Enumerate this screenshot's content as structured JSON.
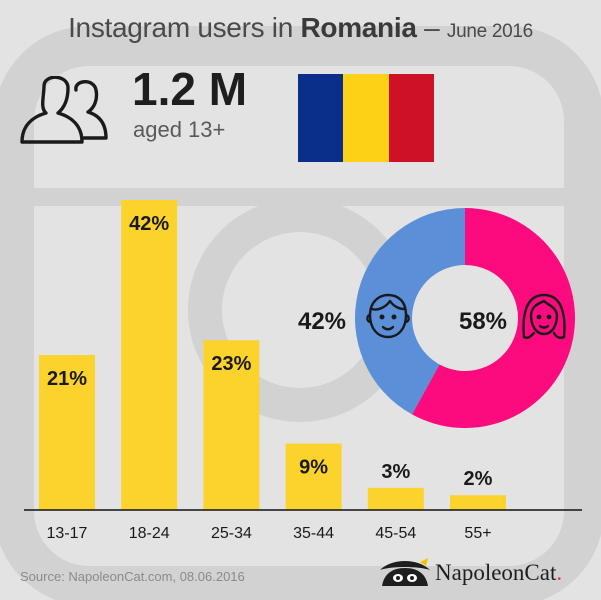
{
  "header": {
    "title_prefix": "Instagram users in",
    "country": "Romania",
    "separator": "–",
    "date": "June 2016"
  },
  "stat": {
    "value": "1.2 M",
    "caption": "aged 13+"
  },
  "flag": {
    "colors": [
      "#0a2f8a",
      "#fcd116",
      "#ce1126"
    ]
  },
  "chart_data": [
    {
      "type": "bar",
      "categories": [
        "13-17",
        "18-24",
        "25-34",
        "35-44",
        "45-54",
        "55+"
      ],
      "values": [
        21,
        42,
        23,
        9,
        3,
        2
      ],
      "labels": [
        "21%",
        "42%",
        "23%",
        "9%",
        "3%",
        "2%"
      ],
      "ylim": [
        0,
        42
      ],
      "color": "#fcd22c"
    },
    {
      "type": "pie",
      "variant": "donut",
      "slices": [
        {
          "value": 58,
          "label": "58%",
          "icon": "woman-face-icon",
          "color": "#fb0b7d"
        },
        {
          "value": 42,
          "label": "42%",
          "icon": "man-face-icon",
          "color": "#5b8fd8"
        }
      ]
    }
  ],
  "footer": {
    "source": "Source: NapoleonCat.com, 08.06.2016",
    "brand": "NapoleonCat",
    "brand_dot": "."
  },
  "icons": {
    "background": "instagram-logo-icon",
    "users": "users-icon",
    "brand": "napoleon-cat-logo-icon"
  }
}
